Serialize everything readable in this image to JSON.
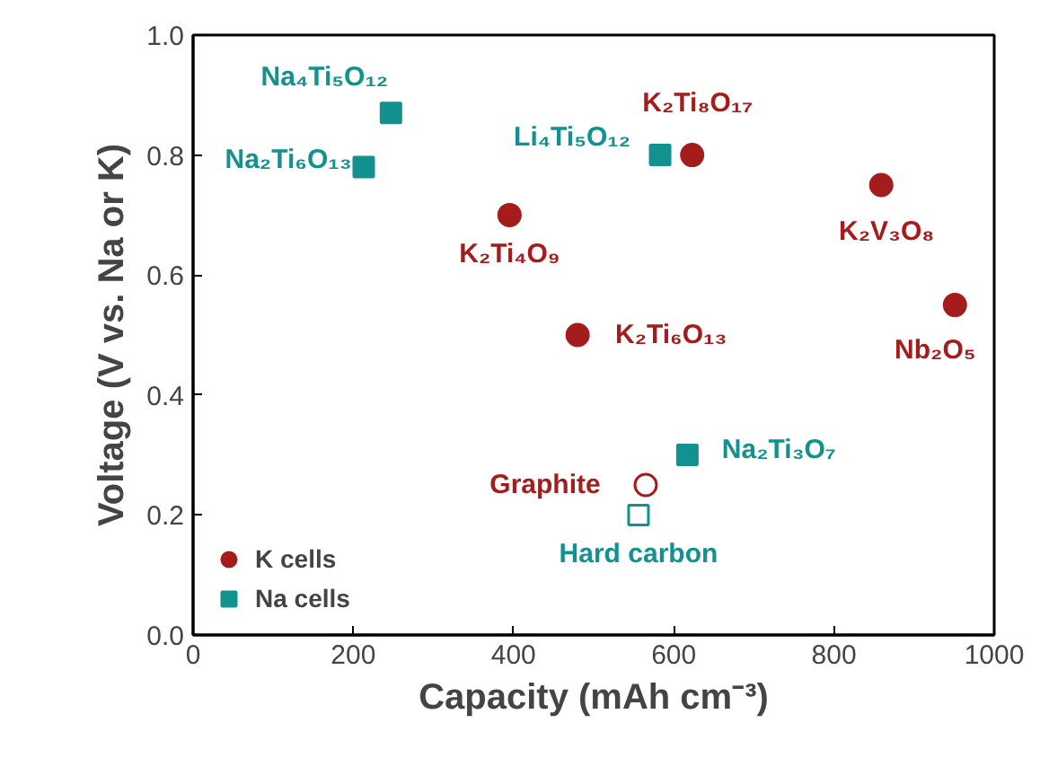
{
  "chart_data": {
    "type": "scatter",
    "xlabel": "Capacity (mAh cm⁻³)",
    "ylabel": "Voltage (V vs. Na or K)",
    "xlim": [
      0,
      1000
    ],
    "ylim": [
      0,
      1.0
    ],
    "xticks": [
      0,
      200,
      400,
      600,
      800,
      1000
    ],
    "yticks": [
      {
        "value": 0,
        "label": "0.0"
      },
      {
        "value": 0.2,
        "label": "0.2"
      },
      {
        "value": 0.4,
        "label": "0.4"
      },
      {
        "value": 0.6,
        "label": "0.6"
      },
      {
        "value": 0.8,
        "label": "0.8"
      },
      {
        "value": 1.0,
        "label": "1.0"
      }
    ],
    "grid": false,
    "legend": "bottom left",
    "series": [
      {
        "name": "K cells",
        "color": "#a51c1c",
        "marker": "circle",
        "x": [
          395,
          480,
          623,
          859,
          951,
          565
        ],
        "values": [
          0.7,
          0.5,
          0.8,
          0.75,
          0.55,
          0.25
        ],
        "colors": [
          "#a51c1c",
          "#a51c1c",
          "#a51c1c",
          "#a51c1c",
          "#a51c1c",
          null
        ]
      },
      {
        "name": "Na cells",
        "color": "#13918e",
        "marker": "square",
        "x": [
          247,
          213,
          583,
          617,
          556
        ],
        "values": [
          0.87,
          0.78,
          0.8,
          0.3,
          0.2
        ],
        "colors": [
          "#13918e",
          "#13918e",
          "#13918e",
          "#13918e",
          null
        ]
      }
    ],
    "annotations": [
      {
        "text": "Na₄Ti₅O₁₂",
        "x": 247,
        "y": 0.87
      },
      {
        "text": "Na₂Ti₆O₁₃",
        "x": 213,
        "y": 0.78
      },
      {
        "text": "Li₄Ti₅O₁₂",
        "x": 583,
        "y": 0.8
      },
      {
        "text": "K₂Ti₈O₁₇",
        "x": 623,
        "y": 0.8
      },
      {
        "text": "K₂Ti₄O₉",
        "x": 395,
        "y": 0.7
      },
      {
        "text": "K₂V₃O₈",
        "x": 859,
        "y": 0.75
      },
      {
        "text": "K₂Ti₆O₁₃",
        "x": 480,
        "y": 0.5
      },
      {
        "text": "Nb₂O₅",
        "x": 951,
        "y": 0.55
      },
      {
        "text": "Na₂Ti₃O₇",
        "x": 617,
        "y": 0.3
      },
      {
        "text": "Graphite",
        "x": 565,
        "y": 0.25
      },
      {
        "text": "Hard carbon",
        "x": 556,
        "y": 0.2
      }
    ]
  }
}
